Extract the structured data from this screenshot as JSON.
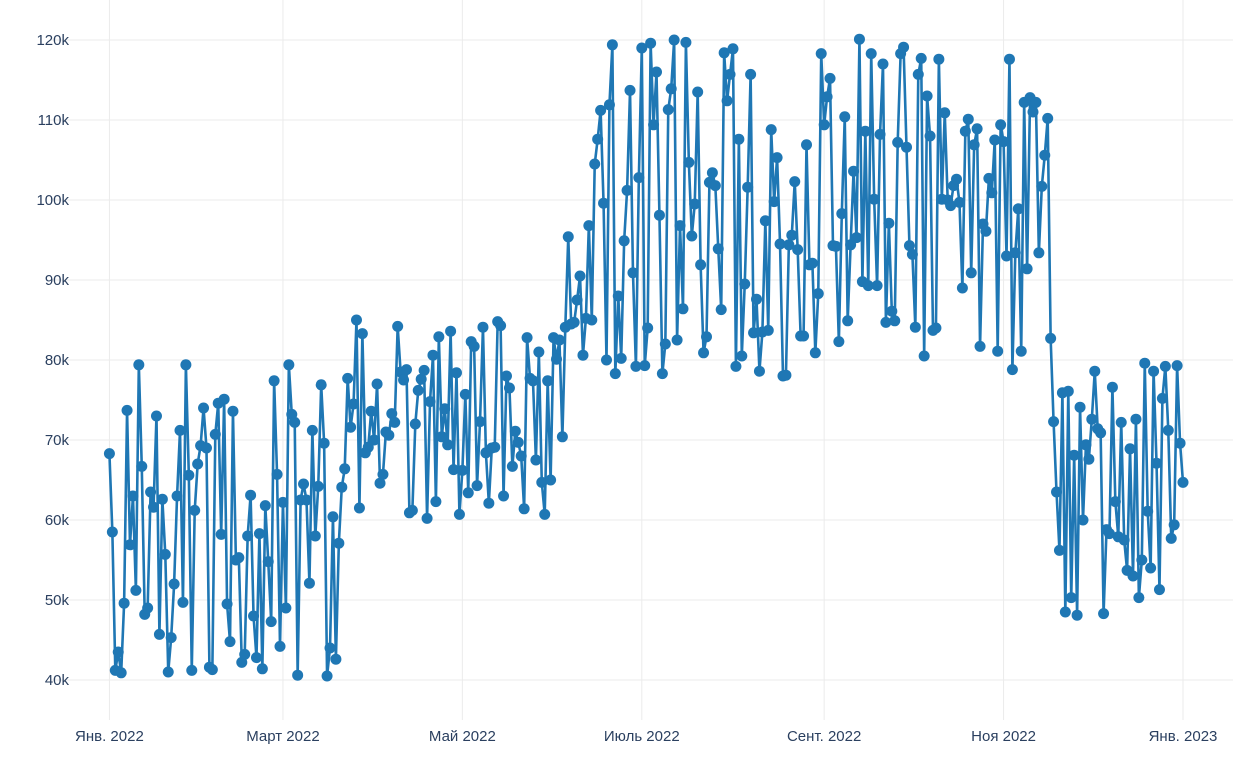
{
  "chart_data": {
    "type": "line",
    "mode": "lines+markers",
    "x_start": "2022-01-01",
    "x_end": "2023-01-01",
    "x_step": "1 day",
    "x_range": [
      "2021-12-05",
      "2023-01-18"
    ],
    "ylim": [
      35000,
      123500
    ],
    "grid": true,
    "legend": "none",
    "colors": {
      "series": "#1f77b4",
      "grid": "#ebebeb",
      "text": "#2a3f5f",
      "background": "#ffffff"
    },
    "x_ticks": [
      {
        "date": "2022-01-01",
        "label": "Янв. 2022"
      },
      {
        "date": "2022-03-01",
        "label": "Март 2022"
      },
      {
        "date": "2022-05-01",
        "label": "Май 2022"
      },
      {
        "date": "2022-07-01",
        "label": "Июль 2022"
      },
      {
        "date": "2022-09-01",
        "label": "Сент. 2022"
      },
      {
        "date": "2022-11-01",
        "label": "Ноя 2022"
      },
      {
        "date": "2023-01-01",
        "label": "Янв. 2023"
      }
    ],
    "y_ticks": [
      {
        "value": 40000,
        "label": "40k"
      },
      {
        "value": 50000,
        "label": "50k"
      },
      {
        "value": 60000,
        "label": "60k"
      },
      {
        "value": 70000,
        "label": "70k"
      },
      {
        "value": 80000,
        "label": "80k"
      },
      {
        "value": 90000,
        "label": "90k"
      },
      {
        "value": 100000,
        "label": "100k"
      },
      {
        "value": 110000,
        "label": "110k"
      },
      {
        "value": 120000,
        "label": "120k"
      }
    ],
    "series": [
      {
        "values": [
          68300,
          58500,
          41200,
          43500,
          40900,
          49600,
          73700,
          56900,
          63000,
          51200,
          79400,
          66700,
          48200,
          49000,
          63500,
          61600,
          73000,
          45700,
          62600,
          55700,
          41000,
          45300,
          52000,
          63000,
          71200,
          49700,
          79400,
          65600,
          41200,
          61200,
          67000,
          69300,
          74000,
          69000,
          41600,
          41300,
          70700,
          74600,
          58200,
          75100,
          49500,
          44800,
          73600,
          55000,
          55300,
          42200,
          43200,
          58000,
          63100,
          48000,
          42800,
          58300,
          41400,
          61800,
          54800,
          47300,
          77400,
          65700,
          44200,
          62200,
          49000,
          79400,
          73200,
          72200,
          40600,
          62500,
          64500,
          62500,
          52100,
          71200,
          58000,
          64200,
          76900,
          69600,
          40500,
          44000,
          60400,
          42600,
          57100,
          64100,
          66400,
          77700,
          71600,
          74500,
          85000,
          61500,
          83300,
          68400,
          69100,
          73600,
          70000,
          77000,
          64600,
          65700,
          71000,
          70600,
          73300,
          72200,
          84200,
          78500,
          77500,
          78800,
          60900,
          61200,
          72000,
          76200,
          77600,
          78700,
          60200,
          74800,
          80600,
          62300,
          82900,
          70400,
          73900,
          69400,
          83600,
          66300,
          78400,
          60700,
          66200,
          75700,
          63400,
          82300,
          81700,
          64300,
          72300,
          84100,
          68400,
          62100,
          69000,
          69100,
          84800,
          84300,
          63000,
          78000,
          76500,
          66700,
          71100,
          69700,
          68000,
          61400,
          82800,
          77700,
          77400,
          67500,
          81000,
          64700,
          60700,
          77400,
          65000,
          82800,
          80100,
          82500,
          70400,
          84100,
          95400,
          84500,
          84700,
          87500,
          90500,
          80600,
          85200,
          96800,
          85000,
          104500,
          107600,
          111200,
          99600,
          80000,
          111900,
          119400,
          78300,
          88000,
          80200,
          94900,
          101200,
          113700,
          90900,
          79200,
          102800,
          119000,
          79300,
          84000,
          119600,
          109400,
          116000,
          98100,
          78300,
          82000,
          111300,
          113900,
          120000,
          82500,
          96800,
          86400,
          119700,
          104700,
          95500,
          99500,
          113500,
          91900,
          80900,
          82900,
          102200,
          103400,
          101800,
          93900,
          86300,
          118400,
          112400,
          115700,
          118900,
          79200,
          107600,
          80500,
          89500,
          101600,
          115700,
          83400,
          87600,
          78600,
          83500,
          97400,
          83700,
          108800,
          99800,
          105300,
          94500,
          78000,
          78100,
          94400,
          95600,
          102300,
          93800,
          83000,
          83000,
          106900,
          91900,
          92100,
          80900,
          88300,
          118300,
          109400,
          112900,
          115200,
          94300,
          94200,
          82300,
          98300,
          110400,
          84900,
          94400,
          103600,
          95300,
          120100,
          89800,
          108600,
          89300,
          118300,
          100100,
          89300,
          108200,
          117000,
          84700,
          97100,
          86100,
          84900,
          107200,
          118300,
          119100,
          106600,
          94300,
          93200,
          84100,
          115700,
          117700,
          80500,
          113000,
          108000,
          83700,
          84000,
          117600,
          100100,
          110900,
          100000,
          99300,
          101800,
          102600,
          99700,
          89000,
          108600,
          110100,
          90900,
          106900,
          108900,
          81700,
          97000,
          96100,
          102700,
          100900,
          107500,
          81100,
          109400,
          107300,
          93000,
          117600,
          78800,
          93400,
          98900,
          81100,
          112200,
          91400,
          112800,
          111000,
          112200,
          93400,
          101700,
          105600,
          110200,
          82700,
          72300,
          63500,
          56200,
          75900,
          48500,
          76100,
          50300,
          68100,
          48100,
          74100,
          60000,
          69400,
          67600,
          72600,
          78600,
          71400,
          70900,
          48300,
          58800,
          58300,
          76600,
          62300,
          57900,
          72200,
          57500,
          53700,
          68900,
          53000,
          72600,
          50300,
          55000,
          79600,
          61100,
          54000,
          78600,
          67100,
          51300,
          75200,
          79200,
          71200,
          57700,
          59400,
          79300,
          69600,
          64700
        ]
      }
    ]
  }
}
